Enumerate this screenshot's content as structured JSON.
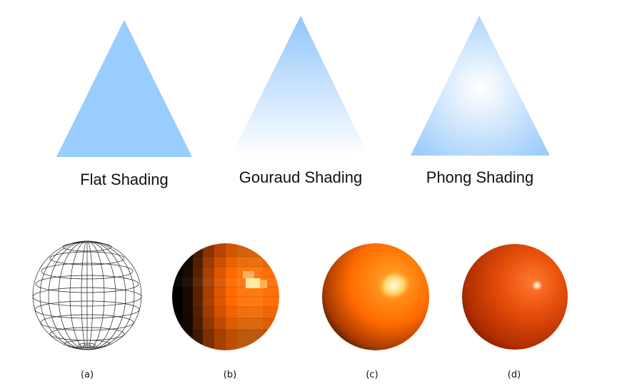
{
  "top_row": {
    "flat": {
      "label": "Flat Shading",
      "color": "#99ccff"
    },
    "gouraud": {
      "label": "Gouraud Shading",
      "color_top": "#99ccff",
      "color_bottom": "#ffffff"
    },
    "phong": {
      "label": "Phong Shading",
      "color_edge": "#9fcdfa",
      "highlight": "#ffffff"
    }
  },
  "bottom_row": {
    "a": {
      "label": "(a)",
      "style": "wireframe"
    },
    "b": {
      "label": "(b)",
      "style": "flat-shaded",
      "color": "#ff6a00"
    },
    "c": {
      "label": "(c)",
      "style": "gouraud-shaded",
      "color": "#ff6a00"
    },
    "d": {
      "label": "(d)",
      "style": "phong-shaded",
      "color": "#e64a0a"
    }
  }
}
